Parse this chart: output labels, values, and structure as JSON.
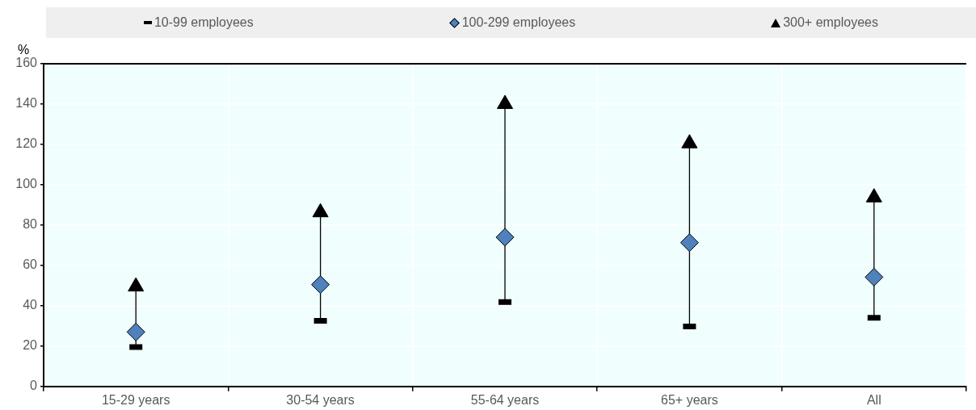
{
  "chart_data": {
    "type": "scatter",
    "ylabel": "%",
    "categories": [
      "15-29 years",
      "30-54 years",
      "55-64 years",
      "65+ years",
      "All"
    ],
    "series": [
      {
        "name": "10-99 employees",
        "color": "#000000",
        "values": [
          19.5,
          32.5,
          41.8,
          29.7,
          34
        ]
      },
      {
        "name": "100-299 employees",
        "color": "#4f81bd",
        "marker": "diamond",
        "values": [
          27,
          50.5,
          74,
          71.3,
          54.2
        ]
      },
      {
        "name": "300+ employees",
        "color": "#000000",
        "marker": "triangle",
        "values": [
          49.5,
          86.3,
          140,
          120.5,
          93.7
        ]
      }
    ],
    "ylim": [
      0,
      160
    ],
    "yticks": [
      0,
      20,
      40,
      60,
      80,
      100,
      120,
      140,
      160
    ],
    "grid": true,
    "legend": "top"
  }
}
